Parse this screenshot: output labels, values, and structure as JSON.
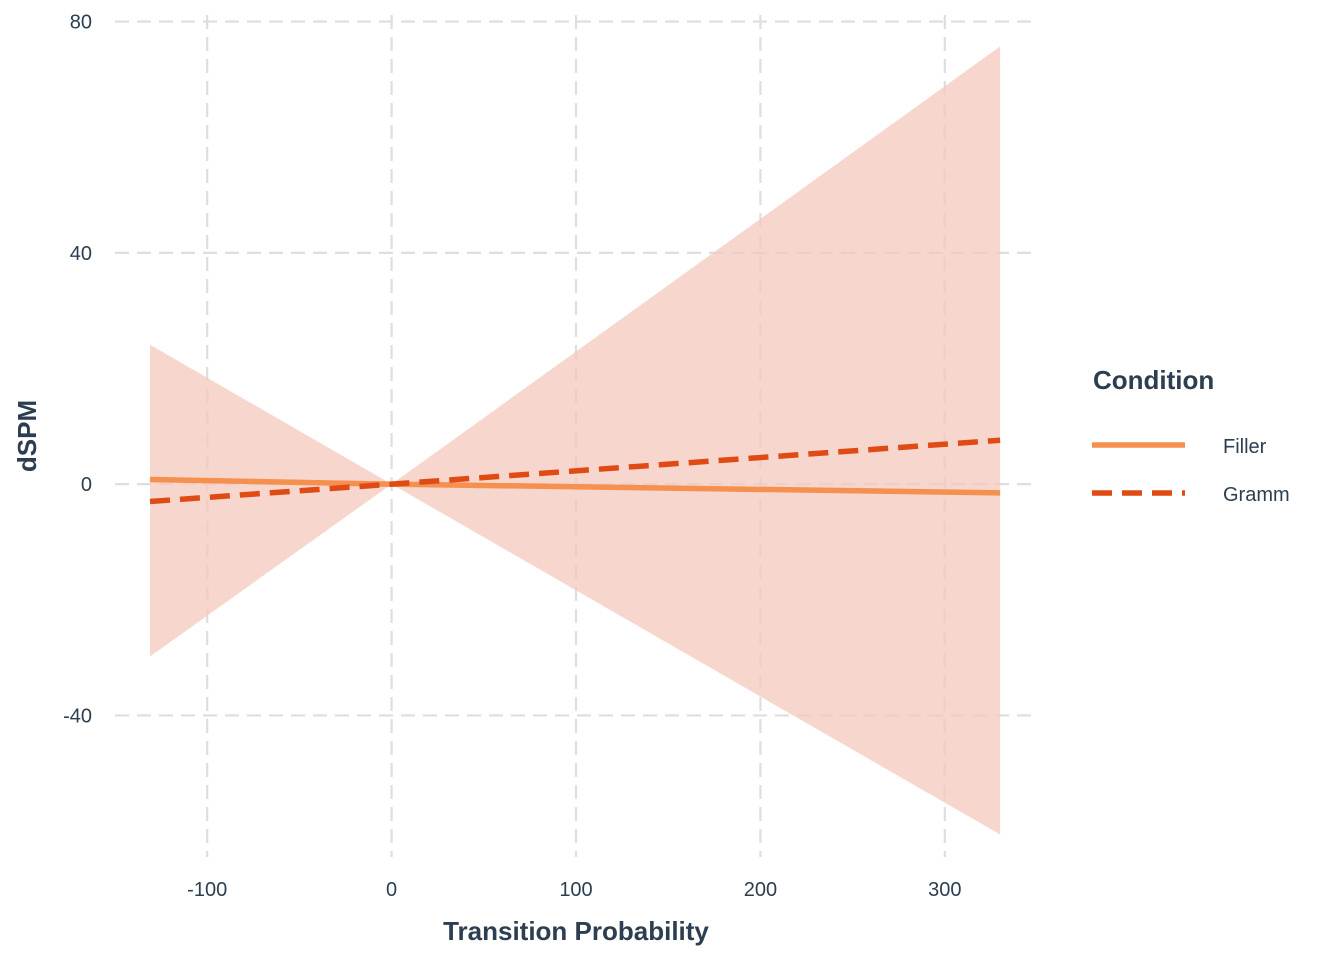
{
  "chart_data": {
    "type": "line",
    "xlabel": "Transition Probability",
    "ylabel": "dSPM",
    "xlim": [
      -150,
      350
    ],
    "ylim": [
      -65,
      82
    ],
    "x_ticks": [
      -100,
      0,
      100,
      200,
      300
    ],
    "y_ticks": [
      -40,
      0,
      40,
      80
    ],
    "x_tick_labels": [
      "-100",
      "0",
      "100",
      "200",
      "300"
    ],
    "y_tick_labels": [
      "-40",
      "0",
      "40",
      "80"
    ],
    "grid": true,
    "grid_style": "dashed",
    "legend": {
      "title": "Condition",
      "placement": "right"
    },
    "series": [
      {
        "name": "Filler",
        "line_style": "solid",
        "color": "#f5904f",
        "x": [
          -131,
          0,
          330
        ],
        "y": [
          0.8,
          0,
          -1.5
        ]
      },
      {
        "name": "Gramm",
        "line_style": "dashed",
        "color": "#e04a14",
        "x": [
          -131,
          0,
          330
        ],
        "y": [
          -3,
          0,
          7.6
        ]
      }
    ],
    "ribbon": {
      "color": "#f4c9bc",
      "opacity": 0.75,
      "x": [
        -131,
        0,
        330
      ],
      "upper": [
        24.1,
        0,
        75.7
      ],
      "lower": [
        -29.8,
        0,
        -60.6
      ]
    }
  }
}
